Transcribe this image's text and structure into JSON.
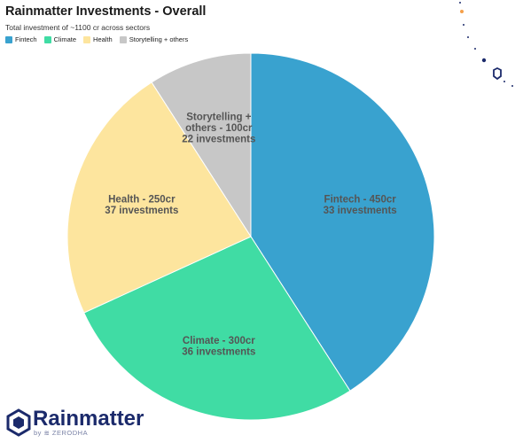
{
  "chart_data": {
    "type": "pie",
    "title": "Rainmatter Investments - Overall",
    "subtitle": "Total investment of ~1100 cr across sectors",
    "slices": [
      {
        "name": "Fintech",
        "value": 450,
        "label_lines": [
          "Fintech - 450cr",
          "33 investments"
        ],
        "color": "#39a2cf"
      },
      {
        "name": "Climate",
        "value": 300,
        "label_lines": [
          "Climate - 300cr",
          "36 investments"
        ],
        "color": "#40dca4"
      },
      {
        "name": "Health",
        "value": 250,
        "label_lines": [
          "Health - 250cr",
          "37 investments"
        ],
        "color": "#fde59e"
      },
      {
        "name": "Storytelling + others",
        "value": 100,
        "label_lines": [
          "Storytelling +",
          "others - 100cr",
          "22 investments"
        ],
        "color": "#c7c7c7"
      }
    ],
    "legend": {
      "position": "top-left"
    }
  },
  "branding": {
    "name": "Rainmatter",
    "by": "by",
    "company": "ZERODHA"
  }
}
